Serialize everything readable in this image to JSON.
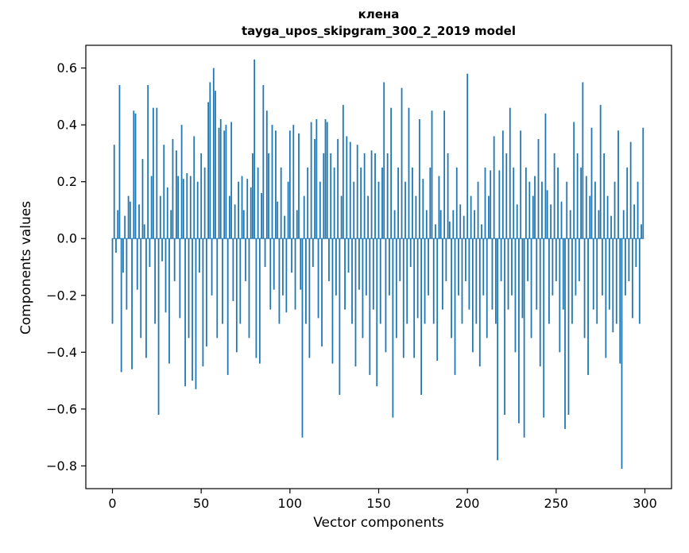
{
  "chart_data": {
    "type": "bar",
    "title": "клена",
    "subtitle": "tayga_upos_skipgram_300_2_2019 model",
    "xlabel": "Vector components",
    "ylabel": "Components values",
    "bar_color": "#1f77b4",
    "xlim": [
      -15,
      315
    ],
    "ylim": [
      -0.88,
      0.68
    ],
    "x_ticks": [
      0,
      50,
      100,
      150,
      200,
      250,
      300
    ],
    "x_tick_labels": [
      "0",
      "50",
      "100",
      "150",
      "200",
      "250",
      "300"
    ],
    "y_ticks": [
      -0.8,
      -0.6,
      -0.4,
      -0.2,
      0.0,
      0.2,
      0.4,
      0.6
    ],
    "y_tick_labels": [
      "−0.8",
      "−0.6",
      "−0.4",
      "−0.2",
      "0.0",
      "0.2",
      "0.4",
      "0.6"
    ],
    "grid": false,
    "legend": null,
    "values": [
      -0.3,
      0.33,
      -0.05,
      0.1,
      0.54,
      -0.47,
      -0.12,
      0.08,
      -0.25,
      0.15,
      0.13,
      -0.46,
      0.45,
      0.44,
      -0.18,
      0.12,
      -0.35,
      0.28,
      0.05,
      -0.42,
      0.54,
      -0.1,
      0.22,
      0.46,
      -0.3,
      0.46,
      -0.62,
      0.15,
      -0.08,
      0.33,
      -0.26,
      0.18,
      -0.44,
      0.1,
      0.35,
      -0.15,
      0.31,
      0.22,
      -0.28,
      0.4,
      0.21,
      -0.52,
      0.23,
      -0.35,
      0.22,
      -0.5,
      0.36,
      -0.53,
      0.2,
      -0.12,
      0.3,
      -0.45,
      0.25,
      -0.38,
      0.48,
      0.55,
      -0.2,
      0.6,
      0.52,
      -0.35,
      0.39,
      0.42,
      -0.3,
      0.38,
      0.4,
      -0.48,
      0.15,
      0.41,
      -0.22,
      0.12,
      -0.4,
      0.2,
      -0.3,
      0.22,
      0.1,
      -0.15,
      0.21,
      -0.35,
      0.18,
      0.3,
      0.63,
      -0.42,
      0.25,
      -0.44,
      0.16,
      0.54,
      -0.1,
      0.45,
      0.3,
      -0.25,
      0.4,
      -0.18,
      0.38,
      0.13,
      -0.3,
      0.25,
      -0.2,
      0.08,
      -0.26,
      0.2,
      0.38,
      -0.12,
      0.4,
      -0.25,
      0.1,
      0.37,
      -0.18,
      -0.7,
      0.15,
      -0.3,
      0.25,
      -0.42,
      0.41,
      -0.1,
      0.35,
      0.42,
      -0.28,
      0.2,
      -0.38,
      0.3,
      0.42,
      0.41,
      -0.15,
      0.3,
      -0.44,
      0.25,
      -0.2,
      0.35,
      -0.55,
      0.15,
      0.47,
      -0.25,
      0.36,
      -0.12,
      0.34,
      -0.3,
      0.2,
      -0.45,
      0.33,
      -0.18,
      0.25,
      -0.35,
      0.3,
      -0.2,
      0.15,
      -0.48,
      0.31,
      -0.25,
      0.3,
      -0.52,
      0.2,
      -0.3,
      0.25,
      0.55,
      -0.4,
      0.3,
      -0.2,
      0.46,
      -0.63,
      0.1,
      -0.35,
      0.25,
      -0.15,
      0.53,
      -0.42,
      0.2,
      -0.3,
      0.46,
      -0.1,
      0.25,
      -0.42,
      0.15,
      -0.28,
      0.42,
      -0.55,
      0.21,
      -0.3,
      0.1,
      -0.2,
      0.25,
      0.45,
      -0.3,
      0.05,
      -0.43,
      0.22,
      0.1,
      -0.25,
      0.45,
      -0.15,
      0.3,
      0.06,
      -0.35,
      0.1,
      -0.48,
      0.25,
      -0.2,
      0.12,
      -0.3,
      0.08,
      -0.15,
      0.58,
      -0.25,
      0.15,
      -0.4,
      0.1,
      -0.3,
      0.2,
      -0.45,
      0.05,
      -0.2,
      0.25,
      -0.35,
      0.15,
      0.24,
      -0.25,
      0.36,
      -0.3,
      -0.78,
      0.24,
      -0.15,
      0.38,
      -0.62,
      0.3,
      -0.25,
      0.46,
      -0.2,
      0.25,
      -0.4,
      0.12,
      -0.65,
      0.38,
      -0.28,
      -0.7,
      0.25,
      -0.15,
      0.2,
      -0.35,
      0.15,
      0.22,
      -0.25,
      0.35,
      -0.45,
      0.2,
      -0.63,
      0.44,
      0.17,
      -0.3,
      0.12,
      -0.2,
      0.3,
      -0.15,
      0.25,
      -0.4,
      0.13,
      -0.25,
      -0.67,
      0.2,
      -0.62,
      0.1,
      -0.3,
      0.41,
      -0.2,
      0.3,
      -0.15,
      0.25,
      0.55,
      -0.35,
      0.22,
      -0.48,
      0.15,
      0.39,
      -0.25,
      0.2,
      -0.3,
      0.1,
      0.47,
      -0.2,
      0.3,
      -0.42,
      0.15,
      -0.25,
      0.08,
      -0.33,
      0.2,
      -0.3,
      0.38,
      -0.44,
      -0.81,
      0.1,
      -0.2,
      0.25,
      -0.15,
      0.34,
      -0.28,
      0.12,
      -0.1,
      0.2,
      -0.3,
      0.05,
      0.39
    ]
  }
}
